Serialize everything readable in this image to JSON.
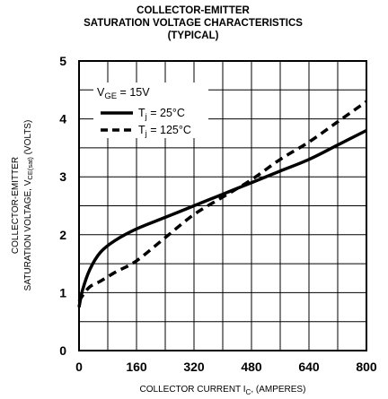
{
  "chart_data": {
    "type": "line",
    "title_lines": [
      "COLLECTOR-EMITTER",
      "SATURATION VOLTAGE CHARACTERISTICS",
      "(TYPICAL)"
    ],
    "xlabel": "COLLECTOR CURRENT I_C, (AMPERES)",
    "ylabel_lines": [
      "COLLECTOR-EMITTER",
      "SATURATION VOLTAGE, V_CE(sat) (VOLTS)"
    ],
    "xlim": [
      0,
      800
    ],
    "ylim": [
      0,
      5
    ],
    "x_ticks": [
      "0",
      "160",
      "320",
      "480",
      "640",
      "800"
    ],
    "y_ticks": [
      "0",
      "1",
      "2",
      "3",
      "4",
      "5"
    ],
    "grid": true,
    "legend_title": "V_GE = 15V",
    "legend_position": "top-left",
    "series": [
      {
        "name": "T_j = 25°C",
        "style": "solid",
        "x": [
          0,
          10,
          30,
          60,
          100,
          160,
          240,
          320,
          400,
          480,
          560,
          640,
          720,
          800
        ],
        "y": [
          0.75,
          1.05,
          1.4,
          1.7,
          1.9,
          2.1,
          2.3,
          2.5,
          2.7,
          2.9,
          3.1,
          3.3,
          3.55,
          3.8
        ]
      },
      {
        "name": "T_j = 125°C",
        "style": "dashed",
        "x": [
          0,
          10,
          30,
          60,
          100,
          160,
          240,
          320,
          400,
          480,
          560,
          640,
          720,
          800
        ],
        "y": [
          0.85,
          0.95,
          1.1,
          1.2,
          1.35,
          1.55,
          1.95,
          2.35,
          2.65,
          2.95,
          3.3,
          3.6,
          3.95,
          4.3
        ]
      }
    ]
  }
}
